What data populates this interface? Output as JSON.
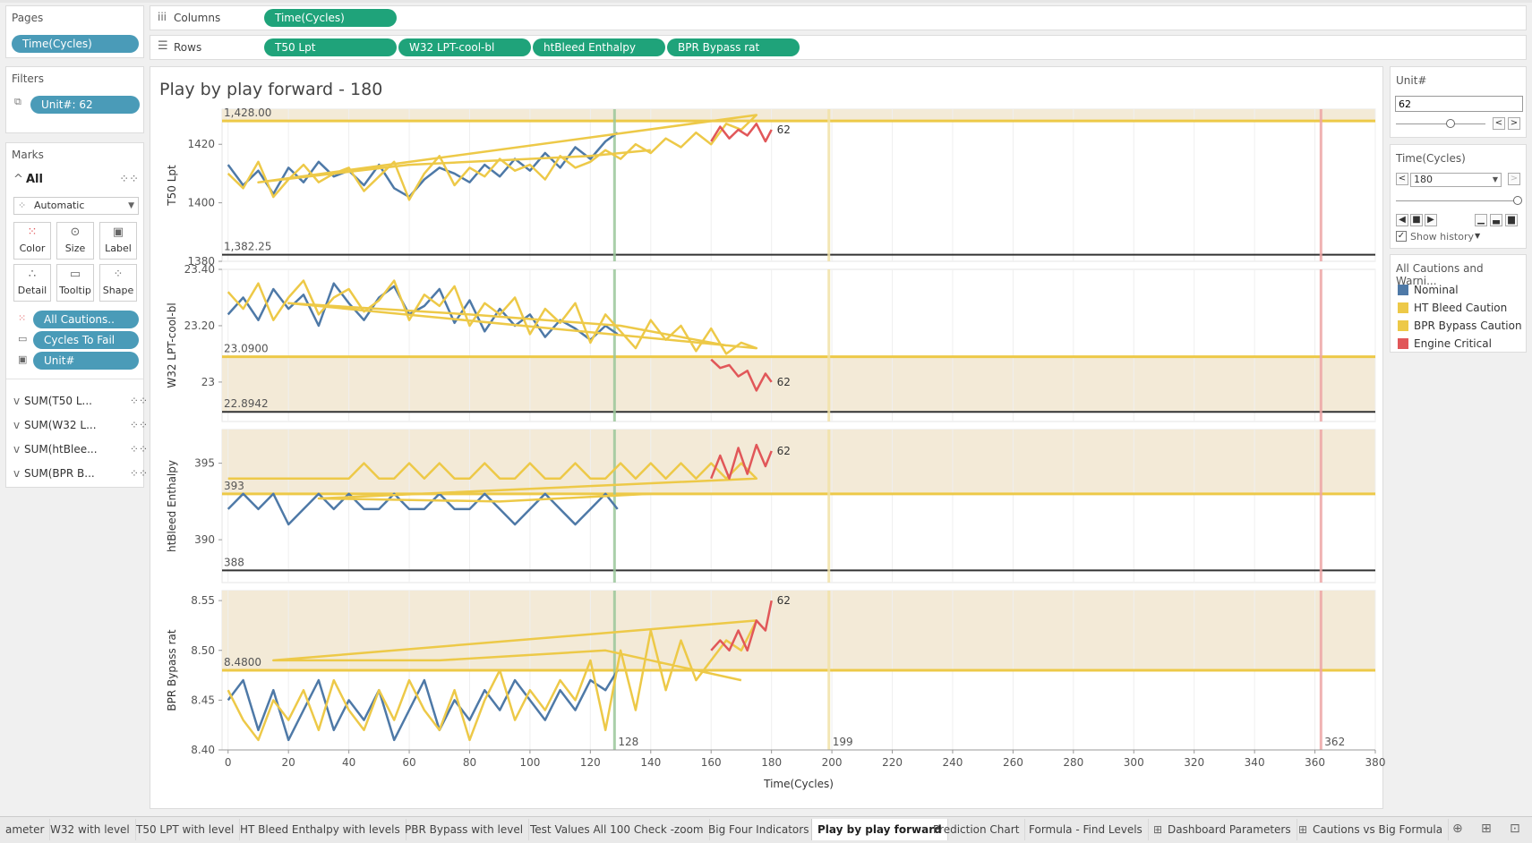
{
  "pages": {
    "title": "Pages",
    "pill": "Time(Cycles)"
  },
  "filters": {
    "title": "Filters",
    "pill": "Unit#: 62"
  },
  "marks": {
    "title": "Marks",
    "all_label": "All",
    "mark_type": "Automatic",
    "cards": [
      "Color",
      "Size",
      "Label",
      "Detail",
      "Tooltip",
      "Shape"
    ],
    "fields": [
      "All Cautions..",
      "Cycles To Fail",
      "Unit#"
    ],
    "measures": [
      "SUM(T50 L...",
      "SUM(W32 L...",
      "SUM(htBlee...",
      "SUM(BPR B..."
    ]
  },
  "shelves": {
    "columns_label": "Columns",
    "rows_label": "Rows",
    "columns": [
      "Time(Cycles)"
    ],
    "rows": [
      "T50 Lpt",
      "W32 LPT-cool-bl",
      "htBleed Enthalpy",
      "BPR Bypass rat"
    ]
  },
  "view": {
    "title": "Play by play forward - 180",
    "x_axis_title": "Time(Cycles)"
  },
  "unit_param": {
    "title": "Unit#",
    "value": "62"
  },
  "time_param": {
    "title": "Time(Cycles)",
    "value": "180",
    "show_history": "Show history"
  },
  "legend": {
    "title": "All Cautions and Warni...",
    "items": [
      {
        "label": "Nominal",
        "color": "#4e79a7"
      },
      {
        "label": "HT Bleed Caution",
        "color": "#edc948"
      },
      {
        "label": "BPR Bypass Caution",
        "color": "#edc948"
      },
      {
        "label": "Engine Critical",
        "color": "#e15759"
      }
    ]
  },
  "tabs": [
    "ameter",
    "W32 with level",
    "T50 LPT with level",
    "HT Bleed Enthalpy with levels",
    "PBR Bypass with level",
    "Test Values All 100 Check -zoom",
    "Big Four Indicators",
    "Play by play forward",
    "Prediction Chart",
    "Formula - Find Levels",
    "Dashboard Parameters",
    "Cautions vs Big Formula"
  ],
  "active_tab": "Play by play forward",
  "chart_data": {
    "type": "line",
    "x_ticks": [
      0,
      20,
      40,
      60,
      80,
      100,
      120,
      140,
      160,
      180,
      200,
      220,
      240,
      260,
      280,
      300,
      320,
      340,
      360,
      380
    ],
    "xlim": [
      -2,
      380
    ],
    "ref_lines": [
      {
        "x": 128,
        "label": "128",
        "color": "#9bc79b"
      },
      {
        "x": 199,
        "label": "199",
        "color": "#f2e2a8"
      },
      {
        "x": 362,
        "label": "362",
        "color": "#eea5a5"
      }
    ],
    "mark_label": "62",
    "colors": {
      "nominal": "#4e79a7",
      "caution": "#edc948",
      "critical": "#e15759",
      "band": "#f3ead7"
    },
    "panes": [
      {
        "ylabel": "T50 Lpt",
        "ylim": [
          1380,
          1432
        ],
        "ticks": [
          1380,
          1400,
          1420
        ],
        "upper_line": 1428.0,
        "upper_label": "1,428.00",
        "lower_line": 1382.25,
        "lower_label": "1,382.25",
        "band": [
          1428,
          1432
        ],
        "series": [
          {
            "name": "Nominal",
            "x": [
              0,
              5,
              10,
              15,
              20,
              25,
              30,
              35,
              40,
              45,
              50,
              55,
              60,
              65,
              70,
              75,
              80,
              85,
              90,
              95,
              100,
              105,
              110,
              115,
              120,
              125,
              129
            ],
            "y": [
              1413,
              1406,
              1411,
              1403,
              1412,
              1407,
              1414,
              1409,
              1411,
              1406,
              1413,
              1405,
              1402,
              1408,
              1412,
              1410,
              1407,
              1413,
              1409,
              1415,
              1411,
              1417,
              1412,
              1419,
              1415,
              1421,
              1424
            ]
          },
          {
            "name": "Caution",
            "x": [
              0,
              5,
              10,
              15,
              20,
              25,
              30,
              35,
              40,
              45,
              50,
              55,
              60,
              65,
              70,
              75,
              80,
              85,
              90,
              95,
              100,
              105,
              110,
              115,
              120,
              125,
              130,
              135,
              140,
              145,
              150,
              155,
              160,
              165,
              170,
              175,
              10,
              60,
              120,
              140
            ],
            "y": [
              1410,
              1405,
              1414,
              1402,
              1408,
              1413,
              1407,
              1410,
              1412,
              1404,
              1409,
              1414,
              1401,
              1410,
              1416,
              1406,
              1412,
              1409,
              1415,
              1411,
              1413,
              1408,
              1416,
              1412,
              1414,
              1418,
              1415,
              1420,
              1417,
              1422,
              1419,
              1424,
              1420,
              1427,
              1425,
              1430,
              1407,
              1413,
              1416,
              1418
            ]
          },
          {
            "name": "Engine Critical",
            "x": [
              160,
              163,
              166,
              169,
              172,
              175,
              178,
              180
            ],
            "y": [
              1421,
              1426,
              1422,
              1425,
              1423,
              1427,
              1421,
              1425
            ]
          }
        ]
      },
      {
        "ylabel": "W32 LPT-cool-bl",
        "ylim": [
          22.86,
          23.4
        ],
        "ticks": [
          23.0,
          23.2,
          23.4
        ],
        "upper_line": 23.09,
        "upper_label": "23.0900",
        "lower_line": 22.8942,
        "lower_label": "22.8942",
        "band": [
          22.8942,
          23.09
        ],
        "series": [
          {
            "name": "Nominal",
            "x": [
              0,
              5,
              10,
              15,
              20,
              25,
              30,
              35,
              40,
              45,
              50,
              55,
              60,
              65,
              70,
              75,
              80,
              85,
              90,
              95,
              100,
              105,
              110,
              115,
              120,
              125,
              129
            ],
            "y": [
              23.24,
              23.3,
              23.22,
              23.33,
              23.26,
              23.31,
              23.2,
              23.35,
              23.28,
              23.22,
              23.3,
              23.34,
              23.24,
              23.27,
              23.33,
              23.21,
              23.29,
              23.18,
              23.26,
              23.2,
              23.24,
              23.16,
              23.22,
              23.19,
              23.15,
              23.2,
              23.17
            ]
          },
          {
            "name": "Caution",
            "x": [
              0,
              5,
              10,
              15,
              20,
              25,
              30,
              35,
              40,
              45,
              50,
              55,
              60,
              65,
              70,
              75,
              80,
              85,
              90,
              95,
              100,
              105,
              110,
              115,
              120,
              125,
              130,
              135,
              140,
              145,
              150,
              155,
              160,
              165,
              170,
              175,
              20,
              80,
              130,
              165
            ],
            "y": [
              23.32,
              23.26,
              23.35,
              23.22,
              23.3,
              23.36,
              23.24,
              23.3,
              23.33,
              23.25,
              23.29,
              23.36,
              23.22,
              23.31,
              23.27,
              23.34,
              23.2,
              23.28,
              23.24,
              23.3,
              23.17,
              23.26,
              23.21,
              23.28,
              23.14,
              23.24,
              23.18,
              23.12,
              23.22,
              23.15,
              23.2,
              23.11,
              23.19,
              23.1,
              23.14,
              23.12,
              23.28,
              23.24,
              23.2,
              23.13
            ]
          },
          {
            "name": "Engine Critical",
            "x": [
              160,
              163,
              166,
              169,
              172,
              175,
              178,
              180
            ],
            "y": [
              23.08,
              23.05,
              23.06,
              23.02,
              23.04,
              22.97,
              23.03,
              23.0
            ]
          }
        ]
      },
      {
        "ylabel": "htBleed Enthalpy",
        "ylim": [
          387.2,
          397.2
        ],
        "ticks": [
          390,
          395
        ],
        "upper_line": 393,
        "upper_label": "393",
        "lower_line": 388,
        "lower_label": "388",
        "band": [
          393,
          397.2
        ],
        "series": [
          {
            "name": "Nominal",
            "x": [
              0,
              5,
              10,
              15,
              20,
              25,
              30,
              35,
              40,
              45,
              50,
              55,
              60,
              65,
              70,
              75,
              80,
              85,
              90,
              95,
              100,
              105,
              110,
              115,
              120,
              125,
              129
            ],
            "y": [
              392,
              393,
              392,
              393,
              391,
              392,
              393,
              392,
              393,
              392,
              392,
              393,
              392,
              392,
              393,
              392,
              392,
              393,
              392,
              391,
              392,
              393,
              392,
              391,
              392,
              393,
              392
            ]
          },
          {
            "name": "Caution",
            "x": [
              0,
              5,
              10,
              15,
              20,
              25,
              30,
              35,
              40,
              45,
              50,
              55,
              60,
              65,
              70,
              75,
              80,
              85,
              90,
              95,
              100,
              105,
              110,
              115,
              120,
              125,
              130,
              135,
              140,
              145,
              150,
              155,
              160,
              165,
              170,
              175,
              30,
              90,
              140
            ],
            "y": [
              394,
              394,
              394,
              394,
              394,
              394,
              394,
              394,
              394,
              395,
              394,
              394,
              395,
              394,
              395,
              394,
              394,
              395,
              394,
              394,
              395,
              394,
              394,
              395,
              394,
              394,
              395,
              394,
              395,
              394,
              395,
              394,
              395,
              394,
              395,
              394,
              392.7,
              392.5,
              393
            ]
          },
          {
            "name": "Engine Critical",
            "x": [
              160,
              163,
              166,
              169,
              172,
              175,
              178,
              180
            ],
            "y": [
              394,
              395.5,
              394,
              396,
              394.3,
              396.2,
              394.8,
              395.8
            ]
          }
        ]
      },
      {
        "ylabel": "BPR Bypass rat",
        "ylim": [
          8.4,
          8.56
        ],
        "ticks": [
          8.4,
          8.45,
          8.5,
          8.55
        ],
        "upper_line": 8.48,
        "upper_label": "8.4800",
        "band": [
          8.48,
          8.56
        ],
        "series": [
          {
            "name": "Nominal",
            "x": [
              0,
              5,
              10,
              15,
              20,
              25,
              30,
              35,
              40,
              45,
              50,
              55,
              60,
              65,
              70,
              75,
              80,
              85,
              90,
              95,
              100,
              105,
              110,
              115,
              120,
              125,
              129
            ],
            "y": [
              8.45,
              8.47,
              8.42,
              8.46,
              8.41,
              8.44,
              8.47,
              8.42,
              8.45,
              8.43,
              8.46,
              8.41,
              8.44,
              8.47,
              8.42,
              8.45,
              8.43,
              8.46,
              8.44,
              8.47,
              8.45,
              8.43,
              8.46,
              8.44,
              8.47,
              8.46,
              8.48
            ]
          },
          {
            "name": "Caution",
            "x": [
              0,
              5,
              10,
              15,
              20,
              25,
              30,
              35,
              40,
              45,
              50,
              55,
              60,
              65,
              70,
              75,
              80,
              85,
              90,
              95,
              100,
              105,
              110,
              115,
              120,
              125,
              130,
              135,
              140,
              145,
              150,
              155,
              160,
              165,
              170,
              175,
              15,
              70,
              125,
              170
            ],
            "y": [
              8.46,
              8.43,
              8.41,
              8.45,
              8.43,
              8.46,
              8.42,
              8.47,
              8.44,
              8.42,
              8.46,
              8.43,
              8.47,
              8.44,
              8.42,
              8.46,
              8.41,
              8.45,
              8.48,
              8.43,
              8.46,
              8.44,
              8.47,
              8.45,
              8.49,
              8.42,
              8.5,
              8.44,
              8.52,
              8.46,
              8.51,
              8.47,
              8.49,
              8.51,
              8.5,
              8.53,
              8.49,
              8.49,
              8.5,
              8.47
            ]
          },
          {
            "name": "Engine Critical",
            "x": [
              160,
              163,
              166,
              169,
              172,
              175,
              178,
              180
            ],
            "y": [
              8.5,
              8.51,
              8.5,
              8.52,
              8.5,
              8.53,
              8.52,
              8.55
            ]
          }
        ]
      }
    ]
  }
}
